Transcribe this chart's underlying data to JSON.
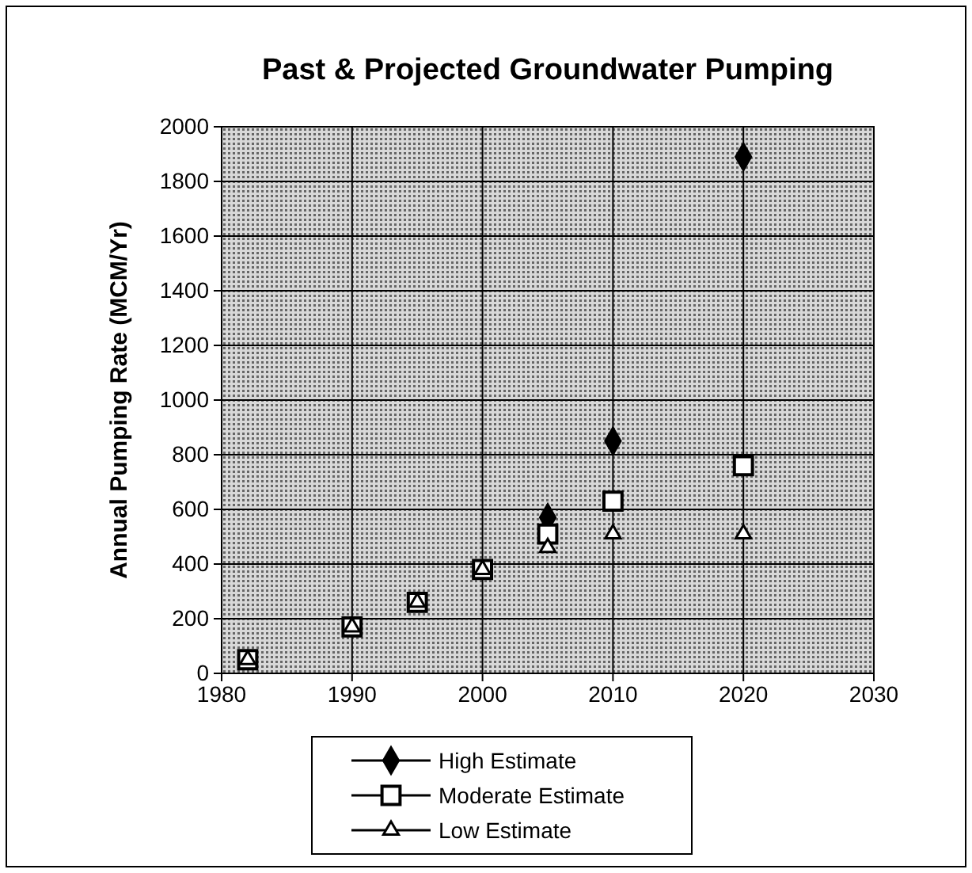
{
  "chart_data": {
    "type": "scatter",
    "title": "Past & Projected Groundwater Pumping",
    "ylabel": "Annual Pumping Rate (MCM/Yr)",
    "x": [
      1982,
      1990,
      1995,
      2000,
      2005,
      2010,
      2020
    ],
    "series": [
      {
        "name": "High Estimate",
        "color": "#000000",
        "marker": "diamond",
        "values": [
          null,
          null,
          null,
          null,
          570,
          850,
          1890
        ]
      },
      {
        "name": "Moderate Estimate",
        "color": "#000000",
        "marker": "square",
        "values": [
          50,
          170,
          260,
          380,
          510,
          630,
          760
        ]
      },
      {
        "name": "Low Estimate",
        "color": "#000000",
        "marker": "triangle",
        "values": [
          50,
          170,
          260,
          380,
          460,
          510,
          510
        ]
      }
    ],
    "xlim": [
      1980,
      2030
    ],
    "xticks": [
      1980,
      1990,
      2000,
      2010,
      2020,
      2030
    ],
    "ylim": [
      0,
      2000
    ],
    "yticks": [
      0,
      200,
      400,
      600,
      800,
      1000,
      1200,
      1400,
      1600,
      1800,
      2000
    ],
    "grid": true,
    "legend": "bottom"
  }
}
